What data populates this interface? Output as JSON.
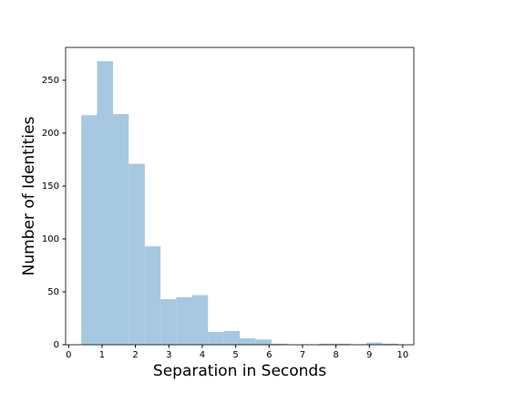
{
  "chart_data": {
    "type": "histogram",
    "xlabel": "Separation in Seconds",
    "ylabel": "Number of Identities",
    "bins": [
      0.38,
      0.85,
      1.33,
      1.8,
      2.28,
      2.75,
      3.22,
      3.7,
      4.17,
      4.65,
      5.12,
      5.59,
      6.07,
      6.54,
      7.02,
      7.49,
      7.96,
      8.44,
      8.91,
      9.39,
      9.86
    ],
    "values": [
      217,
      268,
      218,
      171,
      93,
      43,
      45,
      47,
      12,
      13,
      6,
      5,
      1,
      0,
      0,
      1,
      1,
      0,
      2,
      1
    ],
    "color": "#a6c8e0",
    "xlim": [
      -0.09,
      10.33
    ],
    "xticks": [
      0,
      1,
      2,
      3,
      4,
      5,
      6,
      7,
      8,
      9,
      10
    ],
    "ylim": [
      0,
      281
    ],
    "yticks": [
      0,
      50,
      100,
      150,
      200,
      250
    ]
  }
}
